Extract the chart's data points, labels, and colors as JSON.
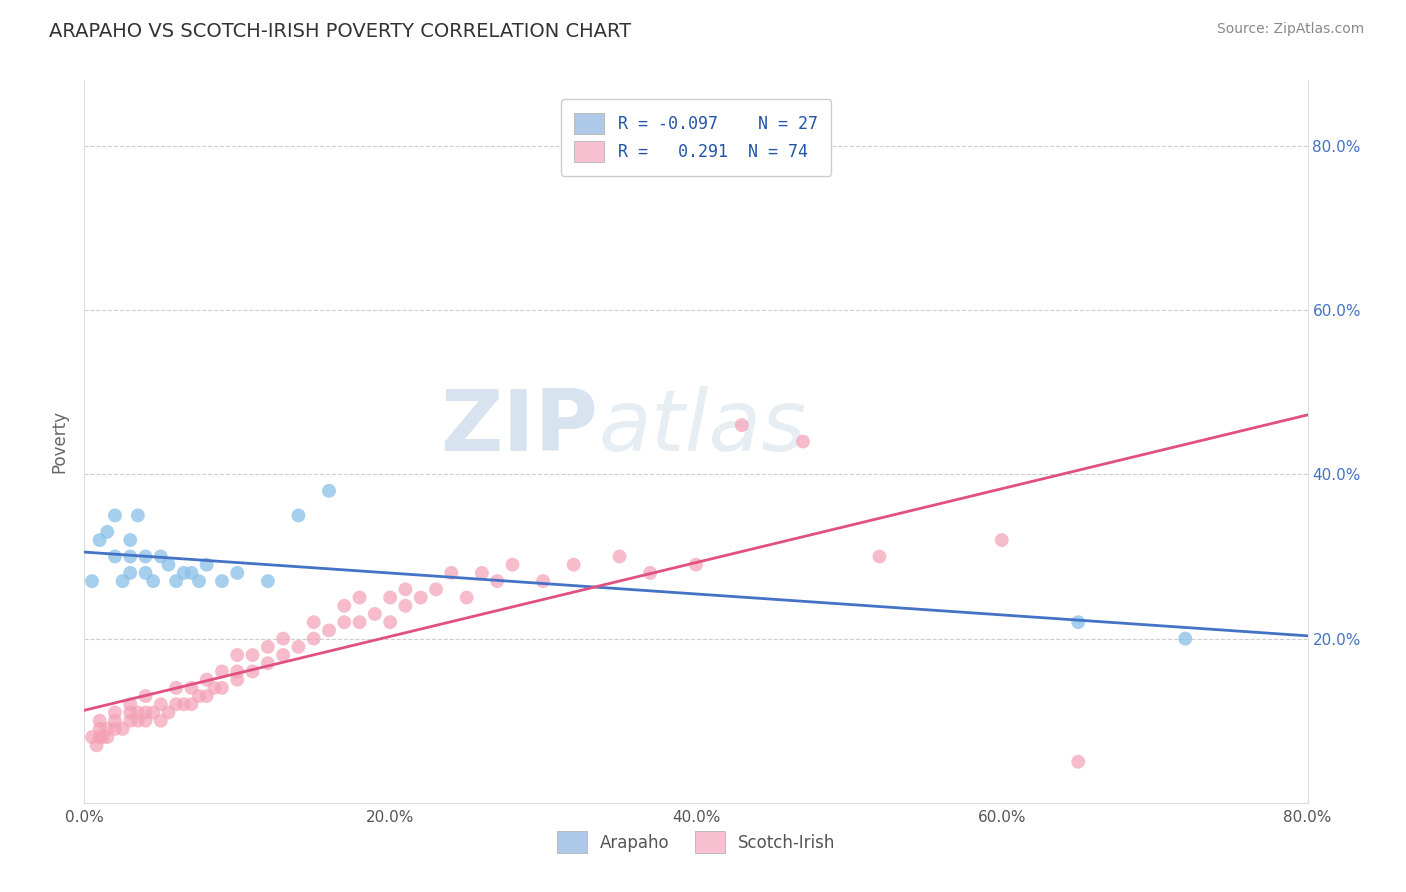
{
  "title": "ARAPAHO VS SCOTCH-IRISH POVERTY CORRELATION CHART",
  "source": "Source: ZipAtlas.com",
  "ylabel": "Poverty",
  "xlim": [
    0.0,
    0.8
  ],
  "ylim": [
    0.0,
    0.88
  ],
  "xtick_labels": [
    "0.0%",
    "",
    "20.0%",
    "",
    "40.0%",
    "",
    "60.0%",
    "",
    "80.0%"
  ],
  "xtick_vals": [
    0.0,
    0.1,
    0.2,
    0.3,
    0.4,
    0.5,
    0.6,
    0.7,
    0.8
  ],
  "ytick_labels_right": [
    "20.0%",
    "40.0%",
    "60.0%",
    "80.0%"
  ],
  "ytick_vals": [
    0.2,
    0.4,
    0.6,
    0.8
  ],
  "arapaho_color": "#89bfe8",
  "scotch_irish_color": "#f4a0b5",
  "arapaho_line_color": "#4472c4",
  "scotch_irish_line_color": "#e05080",
  "legend_arapaho_color": "#adc8e8",
  "legend_scotch_irish_color": "#f8c0d0",
  "R_arapaho": -0.097,
  "N_arapaho": 27,
  "R_scotch_irish": 0.291,
  "N_scotch_irish": 74,
  "arapaho_x": [
    0.005,
    0.01,
    0.015,
    0.02,
    0.02,
    0.025,
    0.03,
    0.03,
    0.03,
    0.035,
    0.04,
    0.04,
    0.045,
    0.05,
    0.055,
    0.06,
    0.065,
    0.07,
    0.075,
    0.08,
    0.09,
    0.1,
    0.12,
    0.14,
    0.16,
    0.65,
    0.72
  ],
  "arapaho_y": [
    0.27,
    0.32,
    0.33,
    0.3,
    0.35,
    0.27,
    0.28,
    0.3,
    0.32,
    0.35,
    0.28,
    0.3,
    0.27,
    0.3,
    0.29,
    0.27,
    0.28,
    0.28,
    0.27,
    0.29,
    0.27,
    0.28,
    0.27,
    0.35,
    0.38,
    0.22,
    0.2
  ],
  "scotch_irish_x": [
    0.005,
    0.008,
    0.01,
    0.01,
    0.01,
    0.012,
    0.015,
    0.015,
    0.02,
    0.02,
    0.02,
    0.025,
    0.03,
    0.03,
    0.03,
    0.035,
    0.035,
    0.04,
    0.04,
    0.04,
    0.045,
    0.05,
    0.05,
    0.055,
    0.06,
    0.06,
    0.065,
    0.07,
    0.07,
    0.075,
    0.08,
    0.08,
    0.085,
    0.09,
    0.09,
    0.1,
    0.1,
    0.1,
    0.11,
    0.11,
    0.12,
    0.12,
    0.13,
    0.13,
    0.14,
    0.15,
    0.15,
    0.16,
    0.17,
    0.17,
    0.18,
    0.18,
    0.19,
    0.2,
    0.2,
    0.21,
    0.21,
    0.22,
    0.23,
    0.24,
    0.25,
    0.26,
    0.27,
    0.28,
    0.3,
    0.32,
    0.35,
    0.37,
    0.4,
    0.43,
    0.47,
    0.52,
    0.6,
    0.65
  ],
  "scotch_irish_y": [
    0.08,
    0.07,
    0.08,
    0.09,
    0.1,
    0.08,
    0.08,
    0.09,
    0.09,
    0.1,
    0.11,
    0.09,
    0.1,
    0.11,
    0.12,
    0.1,
    0.11,
    0.1,
    0.11,
    0.13,
    0.11,
    0.1,
    0.12,
    0.11,
    0.12,
    0.14,
    0.12,
    0.12,
    0.14,
    0.13,
    0.13,
    0.15,
    0.14,
    0.14,
    0.16,
    0.15,
    0.16,
    0.18,
    0.16,
    0.18,
    0.17,
    0.19,
    0.18,
    0.2,
    0.19,
    0.2,
    0.22,
    0.21,
    0.22,
    0.24,
    0.22,
    0.25,
    0.23,
    0.22,
    0.25,
    0.24,
    0.26,
    0.25,
    0.26,
    0.28,
    0.25,
    0.28,
    0.27,
    0.29,
    0.27,
    0.29,
    0.3,
    0.28,
    0.29,
    0.46,
    0.44,
    0.3,
    0.32,
    0.05
  ],
  "watermark_zip": "ZIP",
  "watermark_atlas": "atlas",
  "background_color": "#ffffff",
  "grid_color": "#c8c8c8",
  "title_color": "#333333",
  "axis_label_color": "#666666",
  "tick_color": "#555555",
  "source_color": "#888888"
}
